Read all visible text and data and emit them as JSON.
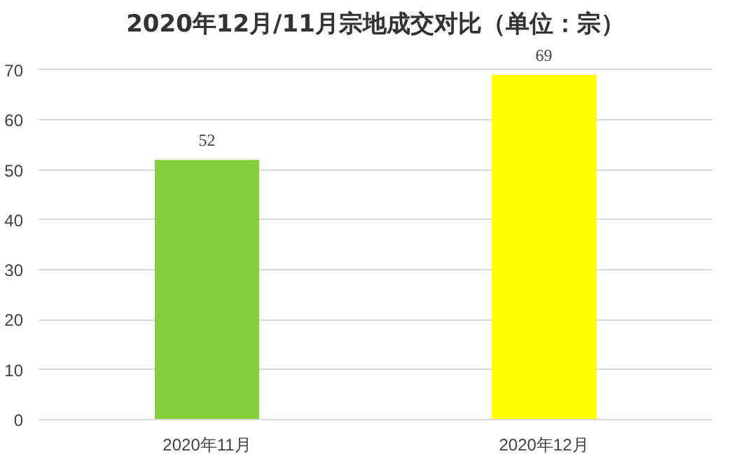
{
  "chart_data": {
    "type": "bar",
    "title": "2020年12月/11月宗地成交对比（单位：宗）",
    "categories": [
      "2020年11月",
      "2020年12月"
    ],
    "values": [
      52,
      69
    ],
    "colors": [
      "#82d13a",
      "#ffff00"
    ],
    "ylim": [
      0,
      70
    ],
    "yticks": [
      0,
      10,
      20,
      30,
      40,
      50,
      60,
      70
    ],
    "grid": "y",
    "data_labels": true
  }
}
